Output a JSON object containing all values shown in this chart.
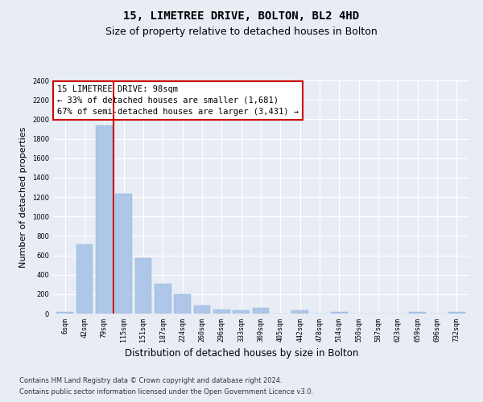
{
  "title1": "15, LIMETREE DRIVE, BOLTON, BL2 4HD",
  "title2": "Size of property relative to detached houses in Bolton",
  "xlabel": "Distribution of detached houses by size in Bolton",
  "ylabel": "Number of detached properties",
  "categories": [
    "6sqm",
    "42sqm",
    "79sqm",
    "115sqm",
    "151sqm",
    "187sqm",
    "224sqm",
    "260sqm",
    "296sqm",
    "333sqm",
    "369sqm",
    "405sqm",
    "442sqm",
    "478sqm",
    "514sqm",
    "550sqm",
    "587sqm",
    "623sqm",
    "659sqm",
    "696sqm",
    "732sqm"
  ],
  "values": [
    15,
    710,
    1940,
    1230,
    575,
    305,
    200,
    80,
    40,
    30,
    55,
    0,
    30,
    0,
    15,
    0,
    0,
    0,
    15,
    0,
    15
  ],
  "bar_color": "#aec6e8",
  "vline_color": "#cc0000",
  "vline_pos": 2.5,
  "annotation_line1": "15 LIMETREE DRIVE: 98sqm",
  "annotation_line2": "← 33% of detached houses are smaller (1,681)",
  "annotation_line3": "67% of semi-detached houses are larger (3,431) →",
  "annotation_box_edgecolor": "#cc0000",
  "ylim": [
    0,
    2400
  ],
  "yticks": [
    0,
    200,
    400,
    600,
    800,
    1000,
    1200,
    1400,
    1600,
    1800,
    2000,
    2200,
    2400
  ],
  "footer1": "Contains HM Land Registry data © Crown copyright and database right 2024.",
  "footer2": "Contains public sector information licensed under the Open Government Licence v3.0.",
  "bg_color": "#e8edf5",
  "grid_color": "#ffffff",
  "title1_fontsize": 10,
  "title2_fontsize": 9,
  "ylabel_fontsize": 8,
  "xlabel_fontsize": 8.5,
  "tick_fontsize": 6,
  "footer_fontsize": 6,
  "annot_fontsize": 7.5
}
